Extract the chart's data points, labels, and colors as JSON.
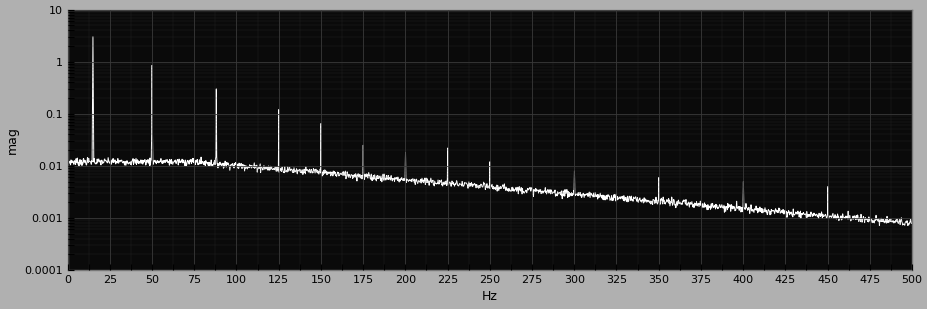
{
  "background_color": "#0a0a0a",
  "figure_bg_color": "#b0b0b0",
  "line_color": "#ffffff",
  "grid_color": "#3a3a3a",
  "text_color": "#000000",
  "xlabel": "Hz",
  "ylabel": "mag",
  "xlim": [
    0,
    500
  ],
  "ylim_log": [
    0.0001,
    10
  ],
  "xticks": [
    0,
    25,
    50,
    75,
    100,
    125,
    150,
    175,
    200,
    225,
    250,
    275,
    300,
    325,
    350,
    375,
    400,
    425,
    450,
    475,
    500
  ],
  "yticks_log": [
    0.0001,
    0.001,
    0.01,
    0.1,
    1,
    10
  ],
  "ytick_labels": [
    "0.0001",
    "0.001",
    "0.01",
    "0.1",
    "1",
    "10"
  ],
  "spike_freqs": [
    15,
    50,
    88,
    125,
    150,
    175,
    200,
    225,
    250,
    300,
    350,
    400,
    450
  ],
  "spike_heights": [
    3.0,
    0.85,
    0.3,
    0.12,
    0.065,
    0.025,
    0.018,
    0.022,
    0.012,
    0.008,
    0.006,
    0.005,
    0.004
  ],
  "noise_seed": 7,
  "base_level_start": 0.012,
  "base_level_mid": 0.007,
  "base_level_end": 0.0008
}
